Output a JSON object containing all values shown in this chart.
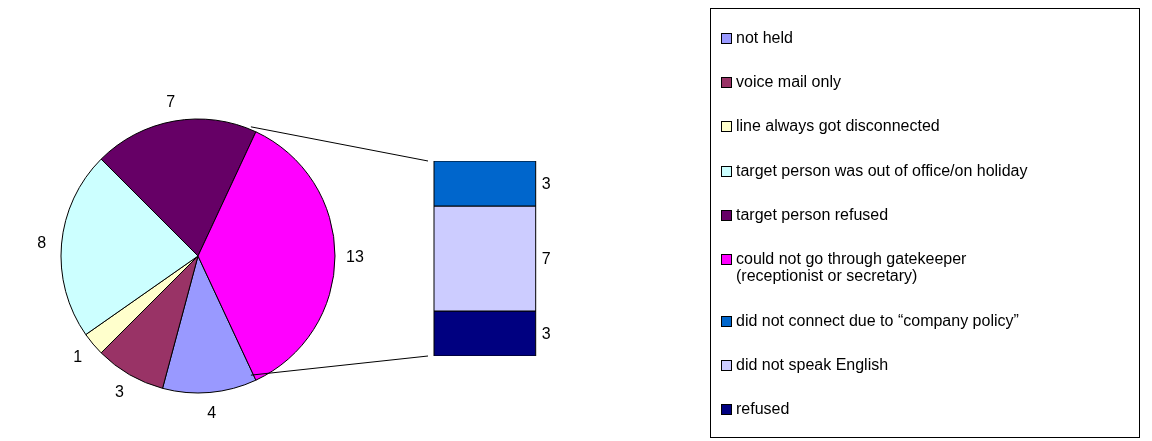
{
  "chart_data": [
    {
      "type": "pie",
      "categories": [
        "not held",
        "voice mail only",
        "line always got disconnected",
        "target person was out of office/on holiday",
        "target person refused",
        "could not go through gatekeeper (receptionist or secretary)"
      ],
      "values": [
        4,
        3,
        1,
        8,
        7,
        13
      ],
      "colors": [
        "#9999ff",
        "#993366",
        "#ffffcc",
        "#ccffff",
        "#660066",
        "#ff00ff"
      ],
      "data_labels": true,
      "legend": "right"
    },
    {
      "type": "bar",
      "stacked": true,
      "categories": [
        null
      ],
      "series": [
        {
          "name": "refused",
          "color": "#000080",
          "values": [
            3
          ]
        },
        {
          "name": "did not speak English",
          "color": "#ccccff",
          "values": [
            7
          ]
        },
        {
          "name": "did not connect due to “company policy”",
          "color": "#0066cc",
          "values": [
            3
          ]
        }
      ],
      "data_labels": true,
      "legend": "right"
    }
  ]
}
